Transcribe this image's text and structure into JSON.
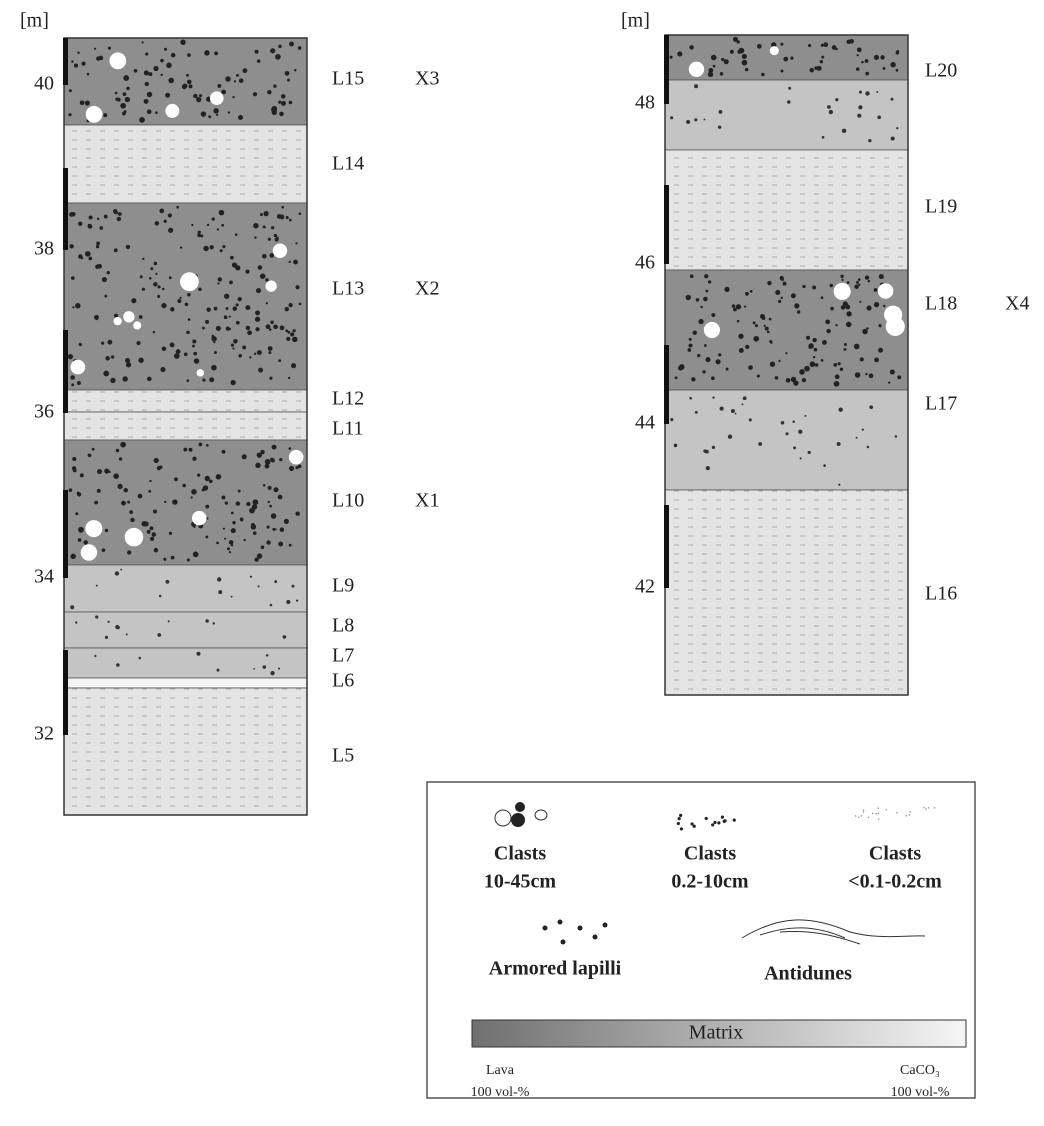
{
  "left_column": {
    "unit": "[m]",
    "ticks": [
      40,
      38,
      36,
      34,
      32
    ],
    "layers": [
      {
        "label": "L15",
        "sample": "X3"
      },
      {
        "label": "L14"
      },
      {
        "label": "L13",
        "sample": "X2"
      },
      {
        "label": "L12"
      },
      {
        "label": "L11"
      },
      {
        "label": "L10",
        "sample": "X1"
      },
      {
        "label": "L9"
      },
      {
        "label": "L8"
      },
      {
        "label": "L7"
      },
      {
        "label": "L6"
      },
      {
        "label": "L5"
      }
    ]
  },
  "right_column": {
    "unit": "[m]",
    "ticks": [
      48,
      46,
      44,
      42
    ],
    "layers": [
      {
        "label": "L20"
      },
      {
        "label": "L19"
      },
      {
        "label": "L18",
        "sample": "X4"
      },
      {
        "label": "L17"
      },
      {
        "label": "L16"
      }
    ]
  },
  "legend": {
    "clasts_large": {
      "title": "Clasts",
      "size": "10-45cm"
    },
    "clasts_medium": {
      "title": "Clasts",
      "size": "0.2-10cm"
    },
    "clasts_fine": {
      "title": "Clasts",
      "size": "<0.1-0.2cm"
    },
    "armored_lapilli": "Armored lapilli",
    "antidunes": "Antidunes",
    "matrix": {
      "title": "Matrix",
      "left": {
        "material": "Lava",
        "amount": "100 vol-%"
      },
      "right": {
        "material": "CaCO₃",
        "amount": "100 vol-%"
      }
    }
  }
}
